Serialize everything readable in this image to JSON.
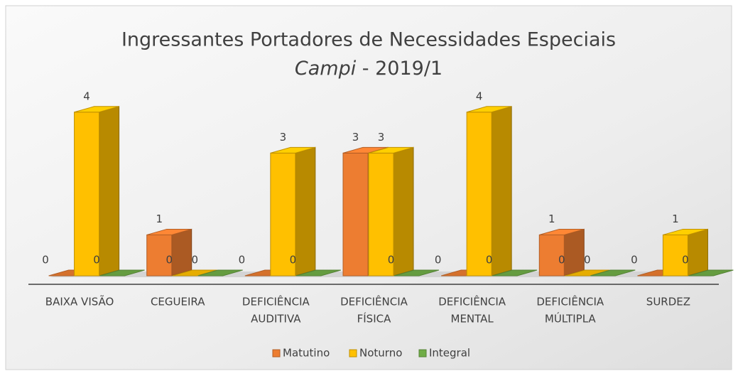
{
  "chart_data": {
    "type": "bar3d",
    "title": "Ingressantes Portadores de Necessidades Especiais",
    "subtitle": [
      "Campi",
      " - 2019/1"
    ],
    "categories": [
      [
        "BAIXA VISÃO"
      ],
      [
        "CEGUEIRA"
      ],
      [
        "DEFICIÊNCIA",
        "AUDITIVA"
      ],
      [
        "DEFICIÊNCIA",
        "FÍSICA"
      ],
      [
        "DEFICIÊNCIA",
        "MENTAL"
      ],
      [
        "DEFICIÊNCIA",
        "MÚLTIPLA"
      ],
      [
        "SURDEZ"
      ]
    ],
    "series": [
      {
        "name": "Matutino",
        "color": "#ed7d31",
        "values": [
          0,
          1,
          0,
          3,
          0,
          1,
          0
        ]
      },
      {
        "name": "Noturno",
        "color": "#ffc000",
        "values": [
          4,
          0,
          3,
          3,
          4,
          0,
          1
        ]
      },
      {
        "name": "Integral",
        "color": "#70ad47",
        "values": [
          0,
          0,
          0,
          0,
          0,
          0,
          0
        ]
      }
    ],
    "ylim": [
      0,
      4.5
    ],
    "legend": "bottom"
  }
}
